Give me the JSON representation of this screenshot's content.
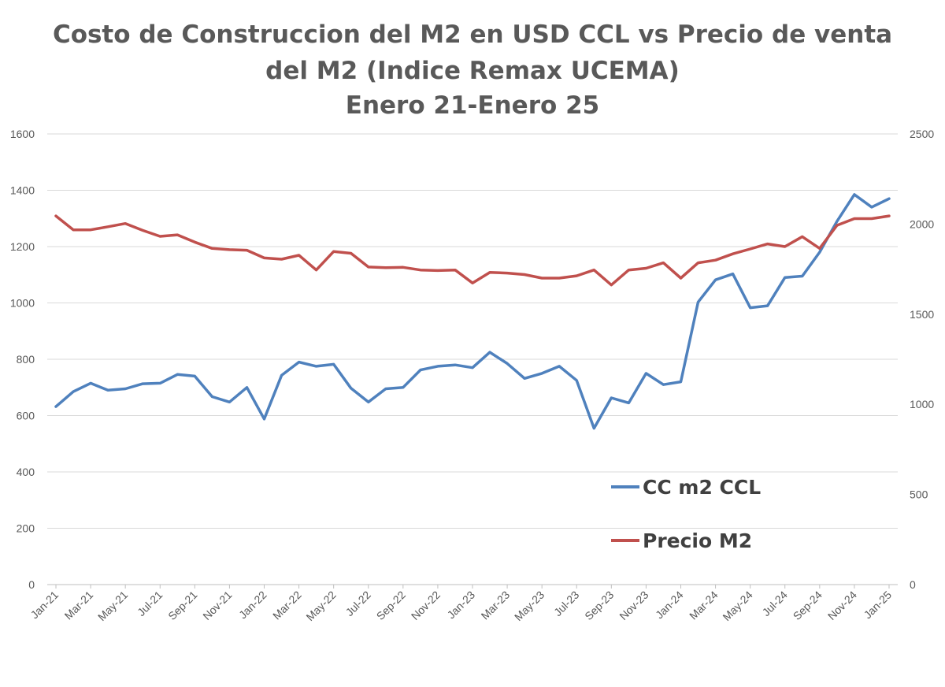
{
  "chart_data": {
    "type": "line",
    "title": [
      "Costo de Construccion del M2 en USD CCL vs Precio de venta",
      "del M2 (Indice Remax UCEMA)",
      "Enero 21-Enero 25"
    ],
    "x_tick_labels": [
      "Jan-21",
      "Mar-21",
      "May-21",
      "Jul-21",
      "Sep-21",
      "Nov-21",
      "Jan-22",
      "Mar-22",
      "May-22",
      "Jul-22",
      "Sep-22",
      "Nov-22",
      "Jan-23",
      "Mar-23",
      "May-23",
      "Jul-23",
      "Sep-23",
      "Nov-23",
      "Jan-24",
      "Mar-24",
      "May-24",
      "Jul-24",
      "Sep-24",
      "Nov-24",
      "Jan-25"
    ],
    "y_left": {
      "min": 0,
      "max": 1600,
      "ticks": [
        "0",
        "200",
        "400",
        "600",
        "800",
        "1000",
        "1200",
        "1400",
        "1600"
      ]
    },
    "y_right": {
      "min": 0,
      "max": 2500,
      "ticks": [
        "0",
        "500",
        "1000",
        "1500",
        "2000",
        "2500"
      ]
    },
    "grid": true,
    "legend_position": "bottom-right",
    "series": [
      {
        "name": "CC m2 CCL",
        "axis": "left",
        "color": "#4f81bd",
        "values": [
          632,
          685,
          715,
          690,
          695,
          713,
          715,
          746,
          740,
          667,
          648,
          700,
          588,
          743,
          790,
          775,
          782,
          697,
          648,
          695,
          700,
          762,
          775,
          780,
          770,
          825,
          785,
          732,
          750,
          775,
          725,
          555,
          663,
          645,
          750,
          710,
          720,
          1003,
          1082,
          1103,
          983,
          990,
          1090,
          1095,
          1180,
          1290,
          1385,
          1340,
          1370
        ]
      },
      {
        "name": "Precio M2",
        "axis": "right",
        "color": "#c0504d",
        "values": [
          2045,
          1968,
          1968,
          1985,
          2003,
          1965,
          1932,
          1940,
          1900,
          1865,
          1858,
          1855,
          1812,
          1805,
          1827,
          1745,
          1848,
          1838,
          1762,
          1758,
          1760,
          1745,
          1742,
          1745,
          1673,
          1732,
          1728,
          1720,
          1700,
          1700,
          1713,
          1745,
          1662,
          1745,
          1755,
          1785,
          1700,
          1785,
          1800,
          1835,
          1862,
          1890,
          1875,
          1930,
          1865,
          1993,
          2030,
          2030,
          2045
        ]
      }
    ]
  }
}
